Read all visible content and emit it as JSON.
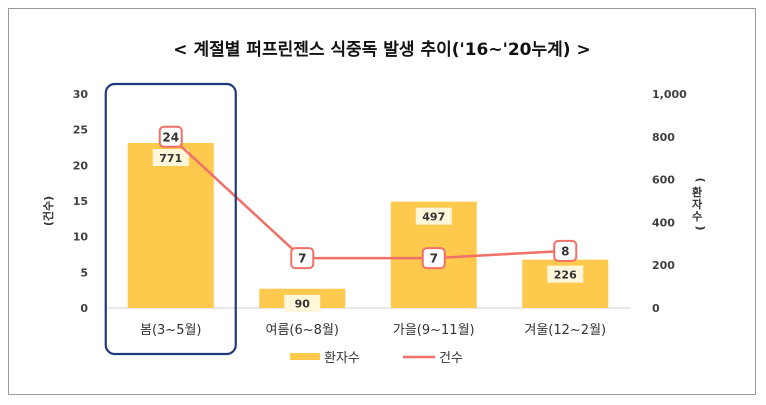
{
  "chart_data": {
    "type": "bar",
    "title": "< 계절별 퍼프린젠스 식중독 발생 추이('16~'20누계) >",
    "categories": [
      "봄(3~5월)",
      "여름(6~8월)",
      "가을(9~11월)",
      "겨울(12~2월)"
    ],
    "series": [
      {
        "name": "환자수",
        "type": "bar",
        "axis": "right",
        "values": [
          771,
          90,
          497,
          226
        ],
        "color": "#FFC94D"
      },
      {
        "name": "건수",
        "type": "line",
        "axis": "left",
        "values": [
          24,
          7,
          7,
          8
        ],
        "color": "#F07068"
      }
    ],
    "y_left": {
      "label": "(건수)",
      "ticks": [
        "0",
        "5",
        "10",
        "15",
        "20",
        "25",
        "30"
      ],
      "range": [
        0,
        30
      ]
    },
    "y_right": {
      "label": "(환자수)",
      "ticks": [
        "0",
        "200",
        "400",
        "600",
        "800",
        "1,000"
      ],
      "range": [
        0,
        1000
      ]
    },
    "highlight_category": "봄(3~5월)",
    "highlight_color": "#1F3A7A",
    "grid": false,
    "legend": "bottom-center"
  }
}
